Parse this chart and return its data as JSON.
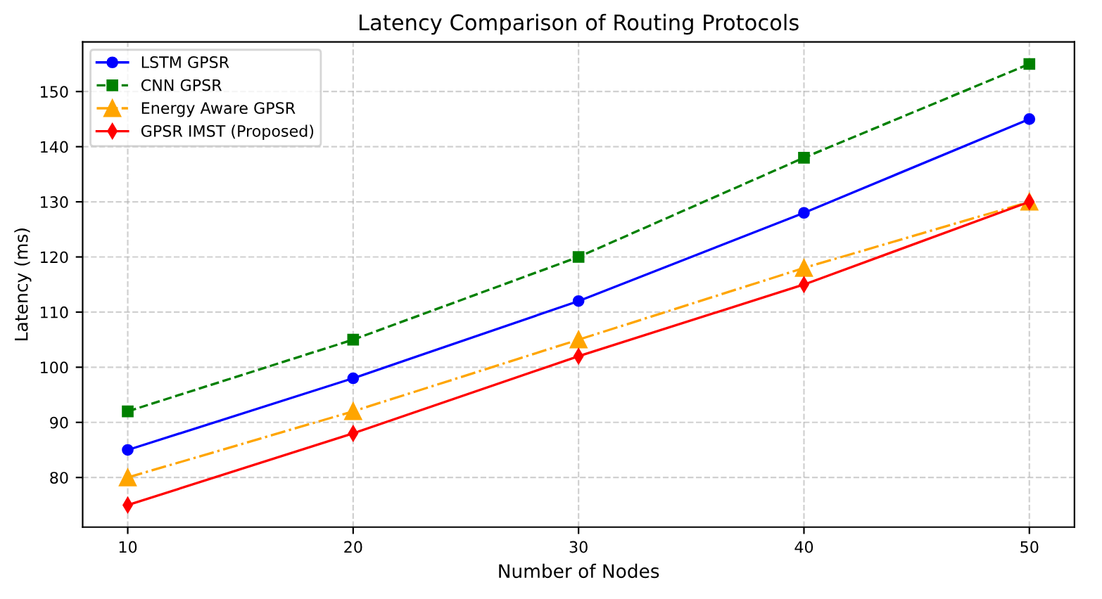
{
  "chart_data": {
    "type": "line",
    "title": "Latency Comparison of Routing Protocols",
    "xlabel": "Number of Nodes",
    "ylabel": "Latency (ms)",
    "x": [
      10,
      20,
      30,
      40,
      50
    ],
    "series": [
      {
        "name": "LSTM GPSR",
        "color": "#0000ff",
        "values": [
          85,
          98,
          112,
          128,
          145
        ],
        "marker": "circle",
        "line_style": "solid"
      },
      {
        "name": "CNN GPSR",
        "color": "#008000",
        "values": [
          92,
          105,
          120,
          138,
          155
        ],
        "marker": "square",
        "line_style": "dashed"
      },
      {
        "name": "Energy Aware GPSR",
        "color": "#ffa500",
        "values": [
          80,
          92,
          105,
          118,
          130
        ],
        "marker": "triangle",
        "line_style": "dashdot"
      },
      {
        "name": "GPSR IMST (Proposed)",
        "color": "#ff0000",
        "values": [
          75,
          88,
          102,
          115,
          130
        ],
        "marker": "diamond",
        "line_style": "solid"
      }
    ],
    "xlim": [
      8,
      52
    ],
    "ylim": [
      71,
      159
    ],
    "xticks": [
      10,
      20,
      30,
      40,
      50
    ],
    "yticks": [
      80,
      90,
      100,
      110,
      120,
      130,
      140,
      150
    ],
    "grid": true,
    "legend": "top left"
  }
}
